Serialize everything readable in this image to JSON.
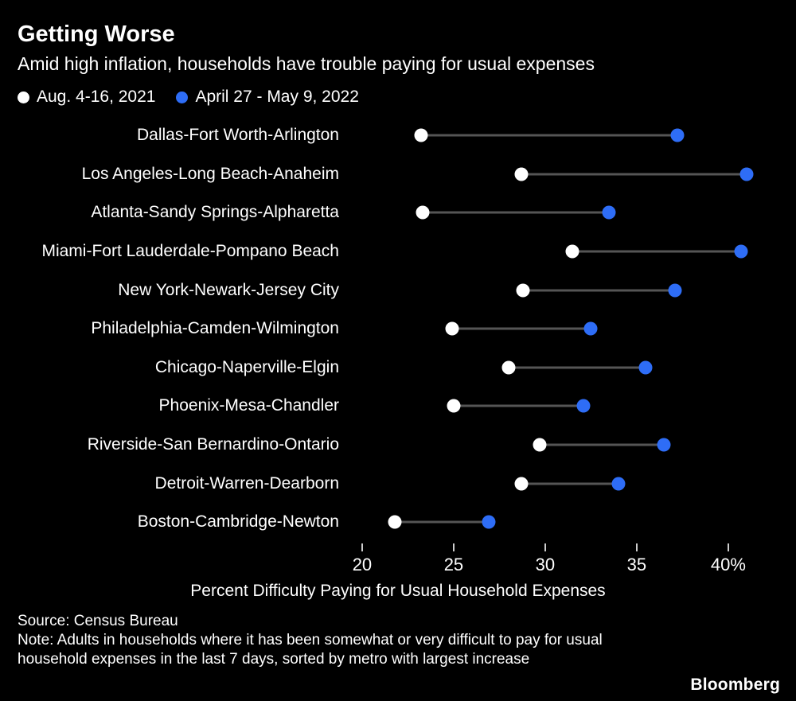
{
  "header": {
    "title": "Getting Worse",
    "subtitle": "Amid high inflation, households have trouble paying for usual expenses"
  },
  "colors": {
    "background": "#000000",
    "text": "#ffffff",
    "connector": "#555555",
    "series_2021": "#ffffff",
    "series_2022": "#2e6df6",
    "tick": "#cccccc"
  },
  "chart_data": {
    "type": "scatter",
    "subtype": "dumbbell",
    "title": "Getting Worse",
    "subtitle": "Amid high inflation, households have trouble paying for usual expenses",
    "categories": [
      "Dallas-Fort Worth-Arlington",
      "Los Angeles-Long Beach-Anaheim",
      "Atlanta-Sandy Springs-Alpharetta",
      "Miami-Fort Lauderdale-Pompano Beach",
      "New York-Newark-Jersey City",
      "Philadelphia-Camden-Wilmington",
      "Chicago-Naperville-Elgin",
      "Phoenix-Mesa-Chandler",
      "Riverside-San Bernardino-Ontario",
      "Detroit-Warren-Dearborn",
      "Boston-Cambridge-Newton"
    ],
    "series": [
      {
        "name": "Aug. 4-16, 2021",
        "color": "#ffffff",
        "values": [
          23.2,
          28.7,
          23.3,
          31.5,
          28.8,
          24.9,
          28.0,
          25.0,
          29.7,
          28.7,
          21.8
        ]
      },
      {
        "name": "April 27 - May 9, 2022",
        "color": "#2e6df6",
        "values": [
          37.2,
          41.0,
          33.5,
          40.7,
          37.1,
          32.5,
          35.5,
          32.1,
          36.5,
          34.0,
          26.9
        ]
      }
    ],
    "xlabel": "Percent Difficulty Paying for Usual Household Expenses",
    "ylabel": "",
    "xticks": [
      20,
      25,
      30,
      35,
      40
    ],
    "xtick_labels": [
      "20",
      "25",
      "30",
      "35",
      "40%"
    ],
    "xlim": [
      19.35,
      43.7
    ],
    "grid": false,
    "legend_position": "top-left"
  },
  "footer": {
    "source": "Source: Census Bureau",
    "note": "Note: Adults in households where it has been somewhat or very difficult to pay for usual household expenses in the last 7 days, sorted by metro with largest increase",
    "brand": "Bloomberg"
  }
}
